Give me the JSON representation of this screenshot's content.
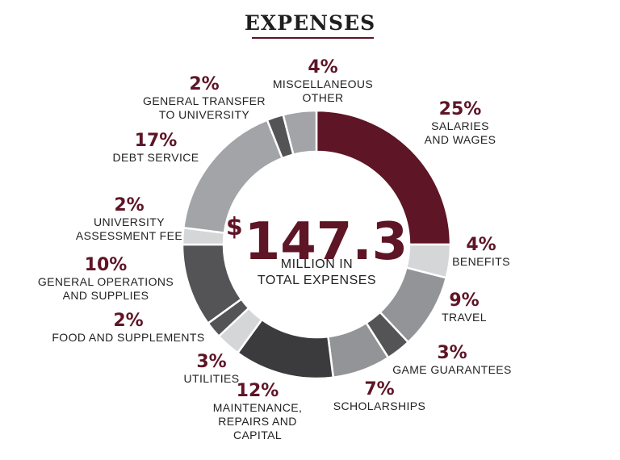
{
  "title": "EXPENSES",
  "colors": {
    "accent": "#5e1526",
    "dark": "#545457",
    "mid": "#929497",
    "light": "#d5d6d8",
    "ink": "#1e1e1e"
  },
  "center": {
    "currency": "$",
    "amount": "147.3",
    "line1": "MILLION IN",
    "line2": "TOTAL EXPENSES"
  },
  "chart_data": {
    "type": "pie",
    "title": "EXPENSES",
    "unit": "%",
    "slices": [
      {
        "name": "SALARIES AND WAGES",
        "value": 25,
        "label": "25%",
        "caption": [
          "SALARIES",
          "AND WAGES"
        ],
        "color": "#5e1526"
      },
      {
        "name": "BENEFITS",
        "value": 4,
        "label": "4%",
        "caption": [
          "BENEFITS"
        ],
        "color": "#d5d6d8"
      },
      {
        "name": "TRAVEL",
        "value": 9,
        "label": "9%",
        "caption": [
          "TRAVEL"
        ],
        "color": "#929497"
      },
      {
        "name": "GAME GUARANTEES",
        "value": 3,
        "label": "3%",
        "caption": [
          "GAME GUARANTEES"
        ],
        "color": "#545457"
      },
      {
        "name": "SCHOLARSHIPS",
        "value": 7,
        "label": "7%",
        "caption": [
          "SCHOLARSHIPS"
        ],
        "color": "#929497"
      },
      {
        "name": "MAINTENANCE, REPAIRS AND CAPITAL",
        "value": 12,
        "label": "12%",
        "caption": [
          "MAINTENANCE,",
          "REPAIRS AND",
          "CAPITAL"
        ],
        "color": "#3b3b3e"
      },
      {
        "name": "UTILITIES",
        "value": 3,
        "label": "3%",
        "caption": [
          "UTILITIES"
        ],
        "color": "#d5d6d8"
      },
      {
        "name": "FOOD AND SUPPLEMENTS",
        "value": 2,
        "label": "2%",
        "caption": [
          "FOOD AND SUPPLEMENTS"
        ],
        "color": "#545457"
      },
      {
        "name": "GENERAL OPERATIONS AND SUPPLIES",
        "value": 10,
        "label": "10%",
        "caption": [
          "GENERAL OPERATIONS",
          "AND SUPPLIES"
        ],
        "color": "#545457"
      },
      {
        "name": "UNIVERSITY ASSESSMENT FEE",
        "value": 2,
        "label": "2%",
        "caption": [
          "UNIVERSITY",
          "ASSESSMENT FEE"
        ],
        "color": "#d5d6d8"
      },
      {
        "name": "DEBT SERVICE",
        "value": 17,
        "label": "17%",
        "caption": [
          "DEBT SERVICE"
        ],
        "color": "#a2a4a7"
      },
      {
        "name": "GENERAL TRANSFER TO UNIVERSITY",
        "value": 2,
        "label": "2%",
        "caption": [
          "GENERAL TRANSFER",
          "TO UNIVERSITY"
        ],
        "color": "#545457"
      },
      {
        "name": "MISCELLANEOUS OTHER",
        "value": 4,
        "label": "4%",
        "caption": [
          "MISCELLANEOUS",
          "OTHER"
        ],
        "color": "#a2a4a7"
      }
    ]
  }
}
